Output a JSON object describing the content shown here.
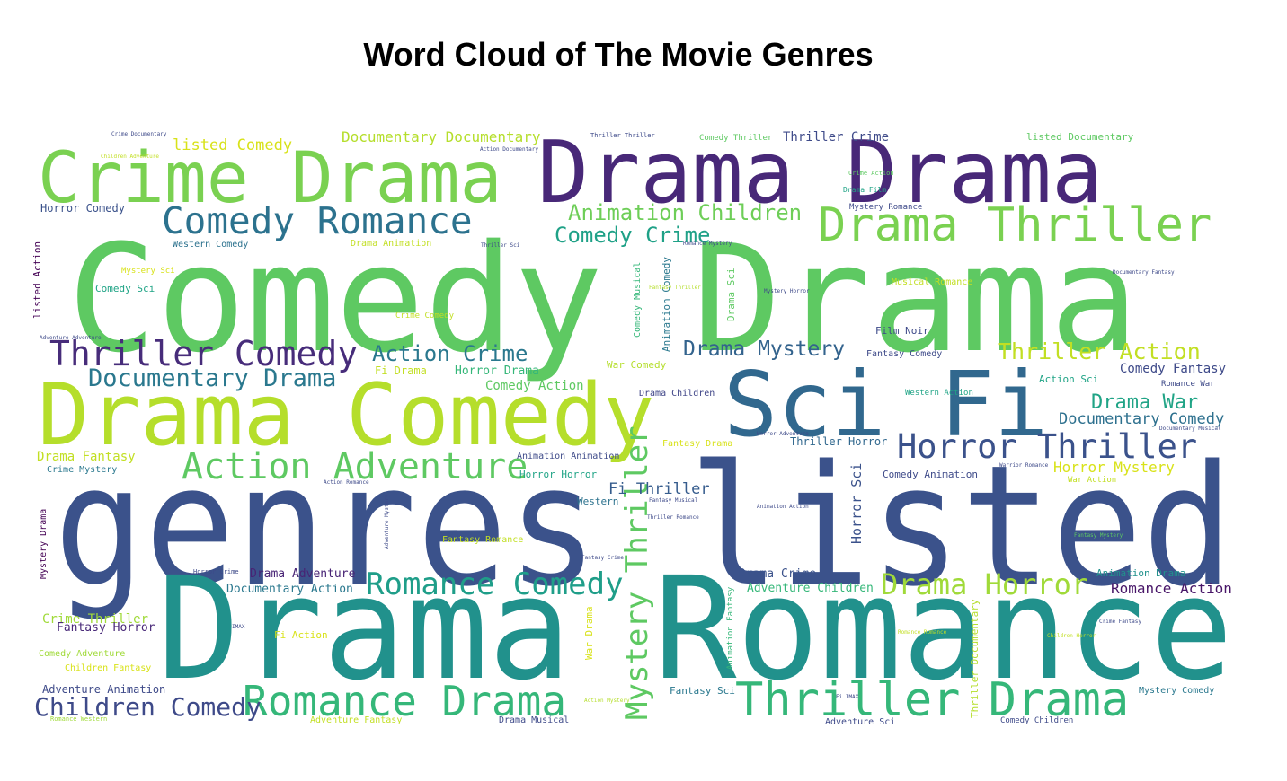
{
  "chart_data": {
    "type": "wordcloud",
    "title": "Word Cloud of The Movie Genres",
    "colormap": "viridis",
    "words": [
      {
        "text": "genres listed",
        "weight": 1.0
      },
      {
        "text": "Comedy Drama",
        "weight": 0.97
      },
      {
        "text": "Drama Romance",
        "weight": 0.93
      },
      {
        "text": "Drama Comedy",
        "weight": 0.6
      },
      {
        "text": "Drama Drama",
        "weight": 0.6
      },
      {
        "text": "Sci Fi",
        "weight": 0.56
      },
      {
        "text": "Crime Drama",
        "weight": 0.5
      },
      {
        "text": "Thriller Drama",
        "weight": 0.34
      },
      {
        "text": "Drama Thriller",
        "weight": 0.34
      },
      {
        "text": "Romance Drama",
        "weight": 0.31
      },
      {
        "text": "Action Adventure",
        "weight": 0.28
      },
      {
        "text": "Comedy Romance",
        "weight": 0.28
      },
      {
        "text": "Horror Thriller",
        "weight": 0.26
      },
      {
        "text": "Thriller Comedy",
        "weight": 0.26
      },
      {
        "text": "Mystery Thriller",
        "weight": 0.24
      },
      {
        "text": "Romance Comedy",
        "weight": 0.24
      },
      {
        "text": "Drama Horror",
        "weight": 0.23
      },
      {
        "text": "Children Comedy",
        "weight": 0.2
      },
      {
        "text": "Documentary Drama",
        "weight": 0.19
      },
      {
        "text": "Animation Children",
        "weight": 0.17
      },
      {
        "text": "Comedy Crime",
        "weight": 0.17
      },
      {
        "text": "Action Crime",
        "weight": 0.17
      },
      {
        "text": "Thriller Action",
        "weight": 0.17
      },
      {
        "text": "Drama Mystery",
        "weight": 0.16
      },
      {
        "text": "Drama War",
        "weight": 0.16
      },
      {
        "text": "Documentary Comedy",
        "weight": 0.13
      },
      {
        "text": "Documentary Documentary",
        "weight": 0.12
      },
      {
        "text": "listed Comedy",
        "weight": 0.12
      },
      {
        "text": "Horror Mystery",
        "weight": 0.11
      },
      {
        "text": "Romance Action",
        "weight": 0.11
      },
      {
        "text": "Comedy Fantasy",
        "weight": 0.11
      },
      {
        "text": "Fi Thriller",
        "weight": 0.11
      },
      {
        "text": "Drama Adventure",
        "weight": 0.1
      },
      {
        "text": "Drama Crime",
        "weight": 0.1
      },
      {
        "text": "Thriller Crime",
        "weight": 0.09
      },
      {
        "text": "Horror Comedy",
        "weight": 0.09
      },
      {
        "text": "Crime Thriller",
        "weight": 0.1
      },
      {
        "text": "Fantasy Horror",
        "weight": 0.09
      },
      {
        "text": "Drama Fantasy",
        "weight": 0.09
      },
      {
        "text": "Comedy Action",
        "weight": 0.09
      },
      {
        "text": "Horror Drama",
        "weight": 0.09
      },
      {
        "text": "Documentary Action",
        "weight": 0.09
      },
      {
        "text": "Adventure Children",
        "weight": 0.09
      },
      {
        "text": "Adventure Animation",
        "weight": 0.09
      },
      {
        "text": "Horror Sci",
        "weight": 0.09
      },
      {
        "text": "listed Documentary",
        "weight": 0.08
      },
      {
        "text": "Western",
        "weight": 0.08
      },
      {
        "text": "Fantasy Sci",
        "weight": 0.07
      },
      {
        "text": "Animation Drama",
        "weight": 0.07
      },
      {
        "text": "Comedy Animation",
        "weight": 0.07
      },
      {
        "text": "Film Noir",
        "weight": 0.07
      },
      {
        "text": "Comedy Sci",
        "weight": 0.07
      },
      {
        "text": "Fi Drama",
        "weight": 0.08
      },
      {
        "text": "War Comedy",
        "weight": 0.07
      },
      {
        "text": "Drama Children",
        "weight": 0.07
      },
      {
        "text": "Thriller Horror",
        "weight": 0.08
      },
      {
        "text": "Animation Animation",
        "weight": 0.07
      },
      {
        "text": "Horror Horror",
        "weight": 0.07
      },
      {
        "text": "Crime Mystery",
        "weight": 0.06
      },
      {
        "text": "Fantasy Romance",
        "weight": 0.06
      },
      {
        "text": "Comedy Adventure",
        "weight": 0.06
      },
      {
        "text": "Children Fantasy",
        "weight": 0.06
      },
      {
        "text": "Fi Action",
        "weight": 0.07
      },
      {
        "text": "Adventure Sci",
        "weight": 0.06
      },
      {
        "text": "Mystery Comedy",
        "weight": 0.06
      },
      {
        "text": "Drama Musical",
        "weight": 0.06
      },
      {
        "text": "Adventure Fantasy",
        "weight": 0.06
      },
      {
        "text": "Western Comedy",
        "weight": 0.06
      },
      {
        "text": "Musical Romance",
        "weight": 0.06
      },
      {
        "text": "Fantasy Comedy",
        "weight": 0.06
      },
      {
        "text": "Action Sci",
        "weight": 0.07
      },
      {
        "text": "Comedy Thriller",
        "weight": 0.05
      },
      {
        "text": "Drama Animation",
        "weight": 0.05
      },
      {
        "text": "Mystery Romance",
        "weight": 0.05
      },
      {
        "text": "listed Action",
        "weight": 0.06
      },
      {
        "text": "Animation Comedy",
        "weight": 0.07
      },
      {
        "text": "Comedy Musical",
        "weight": 0.06
      },
      {
        "text": "Drama Sci",
        "weight": 0.06
      },
      {
        "text": "Mystery Drama",
        "weight": 0.05
      },
      {
        "text": "War Drama",
        "weight": 0.06
      },
      {
        "text": "Thriller Documentary",
        "weight": 0.06
      },
      {
        "text": "Animation Fantasy",
        "weight": 0.05
      },
      {
        "text": "Fantasy Drama",
        "weight": 0.05
      },
      {
        "text": "Romance War",
        "weight": 0.05
      },
      {
        "text": "Mystery Sci",
        "weight": 0.05
      },
      {
        "text": "Crime Comedy",
        "weight": 0.05
      },
      {
        "text": "Western Action",
        "weight": 0.05
      },
      {
        "text": "Comedy Children",
        "weight": 0.05
      },
      {
        "text": "War Action",
        "weight": 0.05
      },
      {
        "text": "Crime Documentary",
        "weight": 0.04
      },
      {
        "text": "Action Documentary",
        "weight": 0.04
      },
      {
        "text": "Crime Action",
        "weight": 0.04
      },
      {
        "text": "Drama Film",
        "weight": 0.04
      },
      {
        "text": "Thriller Thriller",
        "weight": 0.04
      },
      {
        "text": "Fantasy Thriller",
        "weight": 0.04
      },
      {
        "text": "Documentary Fantasy",
        "weight": 0.04
      },
      {
        "text": "Children Adventure",
        "weight": 0.04
      },
      {
        "text": "Crime Fantasy",
        "weight": 0.04
      },
      {
        "text": "Fantasy Mystery",
        "weight": 0.04
      },
      {
        "text": "Romance Romance",
        "weight": 0.04
      },
      {
        "text": "Romance Western",
        "weight": 0.04
      },
      {
        "text": "Documentary Musical",
        "weight": 0.04
      },
      {
        "text": "Thriller Sci",
        "weight": 0.04
      },
      {
        "text": "Romance Mystery",
        "weight": 0.04
      },
      {
        "text": "Mystery Horror",
        "weight": 0.04
      },
      {
        "text": "Horror Crime",
        "weight": 0.04
      },
      {
        "text": "Adventure Adventure",
        "weight": 0.04
      },
      {
        "text": "Action Mystery",
        "weight": 0.04
      },
      {
        "text": "Action Romance",
        "weight": 0.04
      },
      {
        "text": "Thriller Romance",
        "weight": 0.04
      },
      {
        "text": "Animation Action",
        "weight": 0.04
      },
      {
        "text": "Fantasy Crime",
        "weight": 0.04
      },
      {
        "text": "Horror Adventure",
        "weight": 0.04
      },
      {
        "text": "Warrior Romance",
        "weight": 0.04
      },
      {
        "text": "Fantasy Musical",
        "weight": 0.04
      },
      {
        "text": "Children Horror",
        "weight": 0.04
      },
      {
        "text": "Adventure Mystery",
        "weight": 0.04
      },
      {
        "text": "Fi IMAX",
        "weight": 0.03
      },
      {
        "text": "IMAX",
        "weight": 0.03
      }
    ]
  }
}
